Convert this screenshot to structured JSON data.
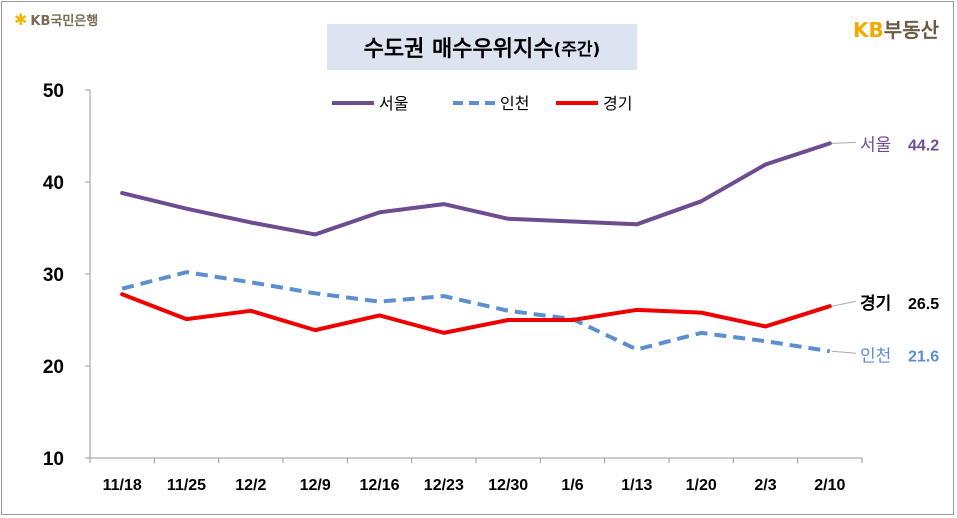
{
  "header": {
    "bank_logo": "KB국민은행",
    "title": "수도권 매수우위지수",
    "title_suffix": "(주간)",
    "brand_kb": "KB",
    "brand_name": "부동산"
  },
  "colors": {
    "seoul": "#6d4c8f",
    "incheon": "#5b8fd0",
    "gyeonggi": "#ee0000",
    "title_bg": "#dde4f1"
  },
  "chart_data": {
    "type": "line",
    "title": "수도권 매수우위지수(주간)",
    "categories": [
      "11/18",
      "11/25",
      "12/2",
      "12/9",
      "12/16",
      "12/23",
      "12/30",
      "1/6",
      "1/13",
      "1/20",
      "2/3",
      "2/10"
    ],
    "ylim": [
      10,
      50
    ],
    "yticks": [
      10,
      20,
      30,
      40,
      50
    ],
    "grid": false,
    "legend_position": "top",
    "series": [
      {
        "name": "서울",
        "style": "solid",
        "color": "#6d4c8f",
        "values": [
          38.8,
          37.1,
          35.6,
          34.3,
          36.7,
          37.6,
          36.0,
          35.7,
          35.4,
          37.9,
          41.9,
          44.2
        ],
        "end_label": "서울",
        "end_value": "44.2"
      },
      {
        "name": "인천",
        "style": "dashed",
        "color": "#5b8fd0",
        "values": [
          28.4,
          30.2,
          29.1,
          27.9,
          27.0,
          27.6,
          26.0,
          25.1,
          21.8,
          23.6,
          22.7,
          21.6
        ],
        "end_label": "인천",
        "end_value": "21.6"
      },
      {
        "name": "경기",
        "style": "solid",
        "color": "#ee0000",
        "values": [
          27.8,
          25.1,
          26.0,
          23.9,
          25.5,
          23.6,
          25.0,
          25.0,
          26.1,
          25.8,
          24.3,
          26.5
        ],
        "end_label": "경기",
        "end_value": "26.5"
      }
    ]
  }
}
